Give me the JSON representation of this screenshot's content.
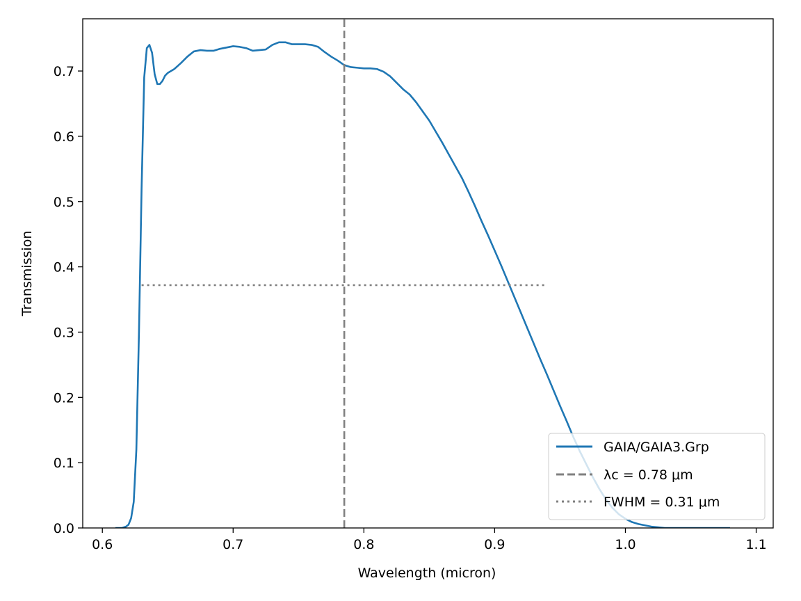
{
  "chart_data": {
    "type": "line",
    "title": "",
    "xlabel": "Wavelength (micron)",
    "ylabel": "Transmission",
    "xlim": [
      0.585,
      1.113
    ],
    "ylim": [
      0.0,
      0.78
    ],
    "xticks": [
      0.6,
      0.7,
      0.8,
      0.9,
      1.0,
      1.1
    ],
    "xtick_labels": [
      "0.6",
      "0.7",
      "0.8",
      "0.9",
      "1.0",
      "1.1"
    ],
    "yticks": [
      0.0,
      0.1,
      0.2,
      0.3,
      0.4,
      0.5,
      0.6,
      0.7
    ],
    "ytick_labels": [
      "0.0",
      "0.1",
      "0.2",
      "0.3",
      "0.4",
      "0.5",
      "0.6",
      "0.7"
    ],
    "grid": false,
    "legend_position": "bottom-right",
    "series": [
      {
        "name": "GAIA/GAIA3.Grp",
        "color": "#1f77b4",
        "style": "solid",
        "x": [
          0.61,
          0.615,
          0.618,
          0.62,
          0.622,
          0.624,
          0.626,
          0.628,
          0.63,
          0.632,
          0.634,
          0.636,
          0.638,
          0.64,
          0.642,
          0.644,
          0.646,
          0.648,
          0.65,
          0.655,
          0.66,
          0.665,
          0.67,
          0.675,
          0.68,
          0.685,
          0.69,
          0.695,
          0.7,
          0.705,
          0.71,
          0.715,
          0.72,
          0.725,
          0.73,
          0.735,
          0.74,
          0.745,
          0.75,
          0.755,
          0.76,
          0.765,
          0.77,
          0.775,
          0.78,
          0.785,
          0.79,
          0.795,
          0.8,
          0.805,
          0.81,
          0.815,
          0.82,
          0.825,
          0.83,
          0.835,
          0.84,
          0.845,
          0.85,
          0.855,
          0.86,
          0.865,
          0.87,
          0.875,
          0.88,
          0.885,
          0.89,
          0.895,
          0.9,
          0.905,
          0.91,
          0.915,
          0.92,
          0.925,
          0.93,
          0.935,
          0.94,
          0.945,
          0.95,
          0.955,
          0.96,
          0.965,
          0.97,
          0.975,
          0.98,
          0.985,
          0.99,
          0.995,
          1.0,
          1.005,
          1.01,
          1.015,
          1.02,
          1.025,
          1.03,
          1.04,
          1.05,
          1.06,
          1.07,
          1.08
        ],
        "y": [
          0.0,
          0.0,
          0.002,
          0.005,
          0.015,
          0.04,
          0.12,
          0.3,
          0.52,
          0.69,
          0.735,
          0.74,
          0.728,
          0.695,
          0.68,
          0.68,
          0.685,
          0.693,
          0.697,
          0.703,
          0.712,
          0.722,
          0.73,
          0.732,
          0.731,
          0.731,
          0.734,
          0.736,
          0.738,
          0.737,
          0.735,
          0.731,
          0.732,
          0.733,
          0.74,
          0.744,
          0.744,
          0.741,
          0.741,
          0.741,
          0.74,
          0.737,
          0.729,
          0.722,
          0.716,
          0.709,
          0.706,
          0.705,
          0.704,
          0.704,
          0.703,
          0.699,
          0.692,
          0.682,
          0.672,
          0.664,
          0.652,
          0.638,
          0.624,
          0.607,
          0.59,
          0.572,
          0.554,
          0.536,
          0.515,
          0.493,
          0.47,
          0.448,
          0.425,
          0.402,
          0.378,
          0.354,
          0.33,
          0.306,
          0.282,
          0.258,
          0.235,
          0.211,
          0.187,
          0.164,
          0.14,
          0.118,
          0.098,
          0.078,
          0.06,
          0.044,
          0.031,
          0.021,
          0.014,
          0.009,
          0.006,
          0.004,
          0.002,
          0.001,
          0.0,
          0.0,
          0.0,
          0.0,
          0.0,
          0.0
        ]
      },
      {
        "name": "λc = 0.78 μm",
        "color": "#808080",
        "style": "dashed",
        "x": [
          0.785,
          0.785
        ],
        "y": [
          0.0,
          0.78
        ]
      },
      {
        "name": "FWHM = 0.31 μm",
        "color": "#808080",
        "style": "dotted",
        "x": [
          0.63,
          0.94
        ],
        "y": [
          0.372,
          0.372
        ]
      }
    ]
  }
}
